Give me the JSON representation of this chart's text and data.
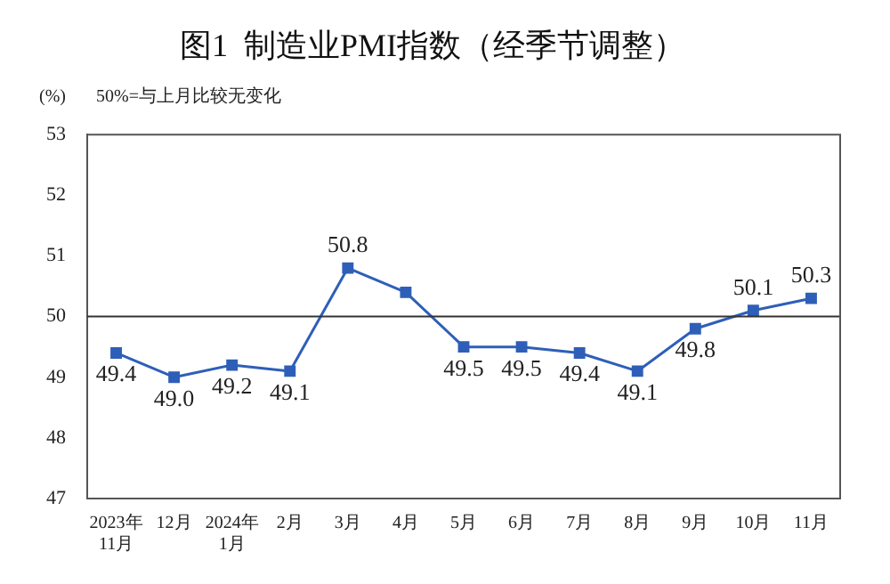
{
  "chart_data": {
    "type": "line",
    "title": "图1  制造业PMI指数（经季节调整）",
    "subtitle": "50%=与上月比较无变化",
    "ylabel": "(%)",
    "categories": [
      "2023年\n11月",
      "12月",
      "2024年\n1月",
      "2月",
      "3月",
      "4月",
      "5月",
      "6月",
      "7月",
      "8月",
      "9月",
      "10月",
      "11月"
    ],
    "series": [
      {
        "color": "#2e5fb8",
        "values": [
          49.4,
          49.0,
          49.2,
          49.1,
          50.8,
          50.4,
          49.5,
          49.5,
          49.4,
          49.1,
          49.8,
          50.1,
          50.3
        ],
        "value_labels": [
          "49.4",
          "49.0",
          "49.2",
          "49.1",
          "50.8",
          null,
          "49.5",
          "49.5",
          "49.4",
          "49.1",
          "49.8",
          "50.1",
          "50.3"
        ]
      }
    ],
    "ylim": [
      47,
      53
    ],
    "yticks": [
      47,
      48,
      49,
      50,
      51,
      52,
      53
    ],
    "ref_lines": [
      {
        "axis": "y",
        "value": 50,
        "color": "#333333"
      }
    ],
    "marker": "square",
    "grid": false,
    "legend": false
  }
}
